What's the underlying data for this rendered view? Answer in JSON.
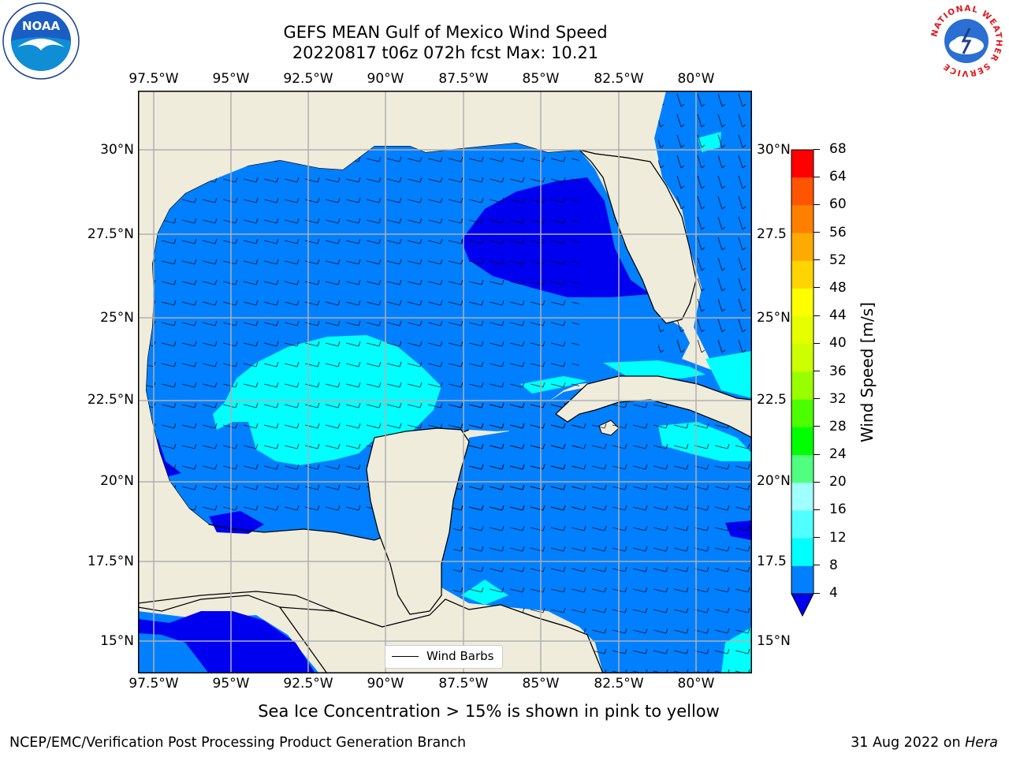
{
  "title": {
    "line1": "GEFS MEAN Gulf of Mexico Wind Speed",
    "line2": "20220817 t06z 072h fcst   Max: 10.21"
  },
  "map": {
    "lon_labels": [
      "97.5°W",
      "95°W",
      "92.5°W",
      "90°W",
      "87.5°W",
      "85°W",
      "82.5°W",
      "80°W"
    ],
    "lat_labels": [
      "30°N",
      "27.5°N",
      "25°N",
      "22.5°N",
      "20°N",
      "17.5°N",
      "15°N"
    ],
    "right_lat_labels": [
      "30°N",
      "27.5",
      "25°N",
      "22.5",
      "20°N",
      "17.5",
      "15°N"
    ],
    "legend_label": "Wind Barbs",
    "land_color": "#efecdc",
    "regions": [
      {
        "name": "gulf-4-8",
        "color": "#0080ff"
      },
      {
        "name": "east-gulf-below-4",
        "color": "#0000f0"
      },
      {
        "name": "central-gulf-8-12",
        "color": "#00ffff"
      }
    ]
  },
  "colorbar": {
    "title": "Wind Speed [m/s]",
    "ticks": [
      "68",
      "64",
      "60",
      "56",
      "52",
      "48",
      "44",
      "40",
      "36",
      "32",
      "28",
      "24",
      "20",
      "16",
      "12",
      "8",
      "4"
    ],
    "colors": [
      "#ff0000",
      "#ff2a00",
      "#ff5500",
      "#ff8000",
      "#ffaa00",
      "#ffd400",
      "#ffff00",
      "#e5ff00",
      "#ccff00",
      "#99ff00",
      "#4cff00",
      "#00ff00",
      "#50ff80",
      "#a0ffff",
      "#50ffff",
      "#00ffff",
      "#0080ff",
      "#0000f0"
    ]
  },
  "caption": "Sea Ice Concentration > 15% is shown in pink to yellow",
  "footer": {
    "left": "NCEP/EMC/Verification Post Processing Product Generation Branch",
    "right_date": "31 Aug 2022 on ",
    "right_host": "Hera"
  },
  "logos": {
    "noaa": "NOAA",
    "nws_ring": "NATIONAL WEATHER SERVICE"
  }
}
